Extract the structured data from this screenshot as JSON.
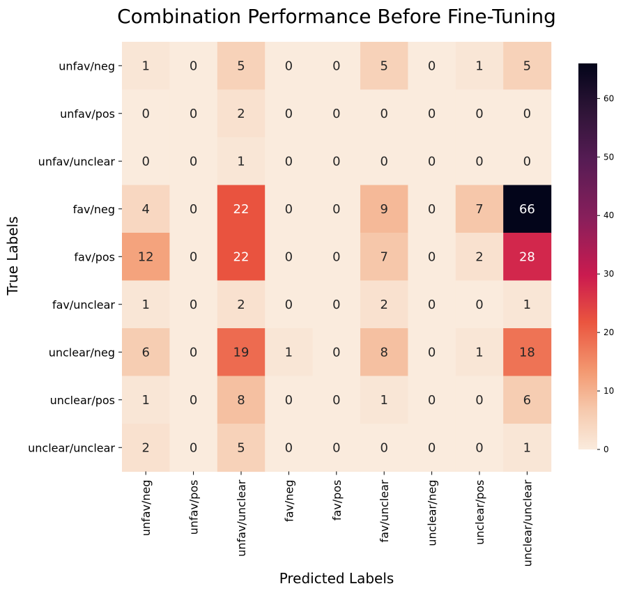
{
  "chart_data": {
    "type": "heatmap",
    "title": "Combination Performance Before Fine-Tuning",
    "xlabel": "Predicted Labels",
    "ylabel": "True Labels",
    "x_categories": [
      "unfav/neg",
      "unfav/pos",
      "unfav/unclear",
      "fav/neg",
      "fav/pos",
      "fav/unclear",
      "unclear/neg",
      "unclear/pos",
      "unclear/unclear"
    ],
    "y_categories": [
      "unfav/neg",
      "unfav/pos",
      "unfav/unclear",
      "fav/neg",
      "fav/pos",
      "fav/unclear",
      "unclear/neg",
      "unclear/pos",
      "unclear/unclear"
    ],
    "values": [
      [
        1,
        0,
        5,
        0,
        0,
        5,
        0,
        1,
        5
      ],
      [
        0,
        0,
        2,
        0,
        0,
        0,
        0,
        0,
        0
      ],
      [
        0,
        0,
        1,
        0,
        0,
        0,
        0,
        0,
        0
      ],
      [
        4,
        0,
        22,
        0,
        0,
        9,
        0,
        7,
        66
      ],
      [
        12,
        0,
        22,
        0,
        0,
        7,
        0,
        2,
        28
      ],
      [
        1,
        0,
        2,
        0,
        0,
        2,
        0,
        0,
        1
      ],
      [
        6,
        0,
        19,
        1,
        0,
        8,
        0,
        1,
        18
      ],
      [
        1,
        0,
        8,
        0,
        0,
        1,
        0,
        0,
        6
      ],
      [
        2,
        0,
        5,
        0,
        0,
        0,
        0,
        0,
        1
      ]
    ],
    "colorbar": {
      "min": 0,
      "max": 66,
      "ticks": [
        0,
        10,
        20,
        30,
        40,
        50,
        60
      ],
      "colormap": "rocket_r"
    }
  }
}
